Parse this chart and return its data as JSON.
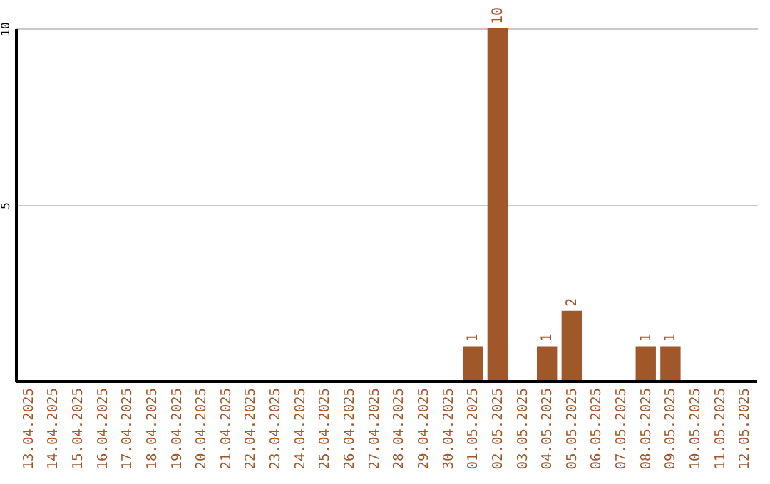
{
  "chart_data": {
    "type": "bar",
    "categories": [
      "13.04.2025",
      "14.04.2025",
      "15.04.2025",
      "16.04.2025",
      "17.04.2025",
      "18.04.2025",
      "19.04.2025",
      "20.04.2025",
      "21.04.2025",
      "22.04.2025",
      "23.04.2025",
      "24.04.2025",
      "25.04.2025",
      "26.04.2025",
      "27.04.2025",
      "28.04.2025",
      "29.04.2025",
      "30.04.2025",
      "01.05.2025",
      "02.05.2025",
      "03.05.2025",
      "04.05.2025",
      "05.05.2025",
      "06.05.2025",
      "07.05.2025",
      "08.05.2025",
      "09.05.2025",
      "10.05.2025",
      "11.05.2025",
      "12.05.2025"
    ],
    "values": [
      0,
      0,
      0,
      0,
      0,
      0,
      0,
      0,
      0,
      0,
      0,
      0,
      0,
      0,
      0,
      0,
      0,
      0,
      1,
      10,
      0,
      1,
      2,
      0,
      0,
      1,
      1,
      0,
      0,
      0
    ],
    "value_labels": [
      null,
      null,
      null,
      null,
      null,
      null,
      null,
      null,
      null,
      null,
      null,
      null,
      null,
      null,
      null,
      null,
      null,
      null,
      "1",
      "10",
      null,
      "1",
      "2",
      null,
      null,
      "1",
      "1",
      null,
      null,
      null
    ],
    "color": "#a0582a",
    "ylim": [
      0,
      10
    ],
    "yticks": [
      5,
      10
    ],
    "grid": "y"
  }
}
